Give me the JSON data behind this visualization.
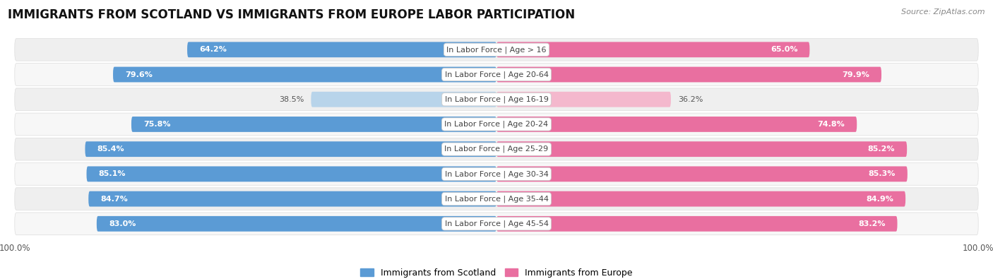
{
  "title": "IMMIGRANTS FROM SCOTLAND VS IMMIGRANTS FROM EUROPE LABOR PARTICIPATION",
  "source": "Source: ZipAtlas.com",
  "categories": [
    "In Labor Force | Age > 16",
    "In Labor Force | Age 20-64",
    "In Labor Force | Age 16-19",
    "In Labor Force | Age 20-24",
    "In Labor Force | Age 25-29",
    "In Labor Force | Age 30-34",
    "In Labor Force | Age 35-44",
    "In Labor Force | Age 45-54"
  ],
  "scotland_values": [
    64.2,
    79.6,
    38.5,
    75.8,
    85.4,
    85.1,
    84.7,
    83.0
  ],
  "europe_values": [
    65.0,
    79.9,
    36.2,
    74.8,
    85.2,
    85.3,
    84.9,
    83.2
  ],
  "scotland_color_dark": "#5b9bd5",
  "scotland_color_light": "#b8d4ea",
  "europe_color_dark": "#e96fa0",
  "europe_color_light": "#f4b8cd",
  "row_bg_even": "#efefef",
  "row_bg_odd": "#f7f7f7",
  "center_label_bg": "#ffffff",
  "center_label_color": "#444444",
  "max_value": 100.0,
  "legend_scotland": "Immigrants from Scotland",
  "legend_europe": "Immigrants from Europe",
  "title_fontsize": 12,
  "label_fontsize": 8.0,
  "value_fontsize": 8.0,
  "bar_height": 0.62,
  "background_color": "#ffffff",
  "threshold": 55.0
}
